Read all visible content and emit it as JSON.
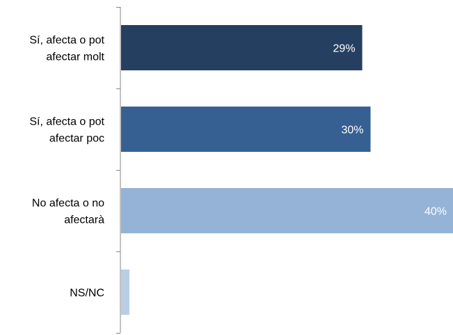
{
  "chart_data": {
    "type": "bar",
    "orientation": "horizontal",
    "categories": [
      [
        "Sí, afecta o pot",
        "afectar molt"
      ],
      [
        "Sí, afecta o pot",
        "afectar poc"
      ],
      [
        "No afecta o no",
        "afectarà"
      ],
      [
        "NS/NC"
      ]
    ],
    "values": [
      29,
      30,
      40,
      1
    ],
    "data_labels": [
      "29%",
      "30%",
      "40%",
      ""
    ],
    "colors": [
      "#243F60",
      "#366092",
      "#95B3D7",
      "#B9CDE5"
    ],
    "xlim": [
      0,
      40
    ],
    "title": "",
    "xlabel": "",
    "ylabel": "",
    "grid": false,
    "legend": "none"
  }
}
